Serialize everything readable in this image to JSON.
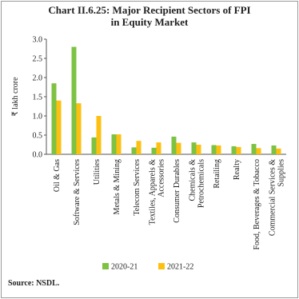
{
  "chart_data": {
    "type": "bar",
    "title": "Chart II.6.25: Major Recipient Sectors of FPI in Equity Market",
    "y_label": "₹ lakh crore",
    "categories": [
      "Oil & Gas",
      "Software & Services",
      "Utilities",
      "Metals & Mining",
      "Telecom Services",
      "Textiles, Apparels &\nAccessories",
      "Consumer Durables",
      "Chemicals &\nPetrochemicals",
      "Retailing",
      "Realty",
      "Food, Beverages & Tobacco",
      "Commercial Services &\nSupplies"
    ],
    "series": [
      {
        "name": "2020-21",
        "color": "#7dc242",
        "values": [
          1.85,
          2.8,
          0.44,
          0.52,
          0.18,
          0.17,
          0.46,
          0.31,
          0.24,
          0.21,
          0.27,
          0.23
        ]
      },
      {
        "name": "2021-22",
        "color": "#fdc010",
        "values": [
          1.4,
          1.33,
          1.0,
          0.52,
          0.35,
          0.31,
          0.3,
          0.25,
          0.23,
          0.19,
          0.16,
          0.15
        ]
      }
    ],
    "ylim": [
      0,
      3
    ],
    "yticks": [
      {
        "value": 0,
        "label": "0.0"
      },
      {
        "value": 0.5,
        "label": "0.5"
      },
      {
        "value": 1,
        "label": "1.0"
      },
      {
        "value": 1.5,
        "label": "1.5"
      },
      {
        "value": 2,
        "label": "2.0"
      },
      {
        "value": 2.5,
        "label": "2.5"
      },
      {
        "value": 3,
        "label": "3.0"
      }
    ],
    "legend": "bottom",
    "source": "Source: NSDL."
  }
}
